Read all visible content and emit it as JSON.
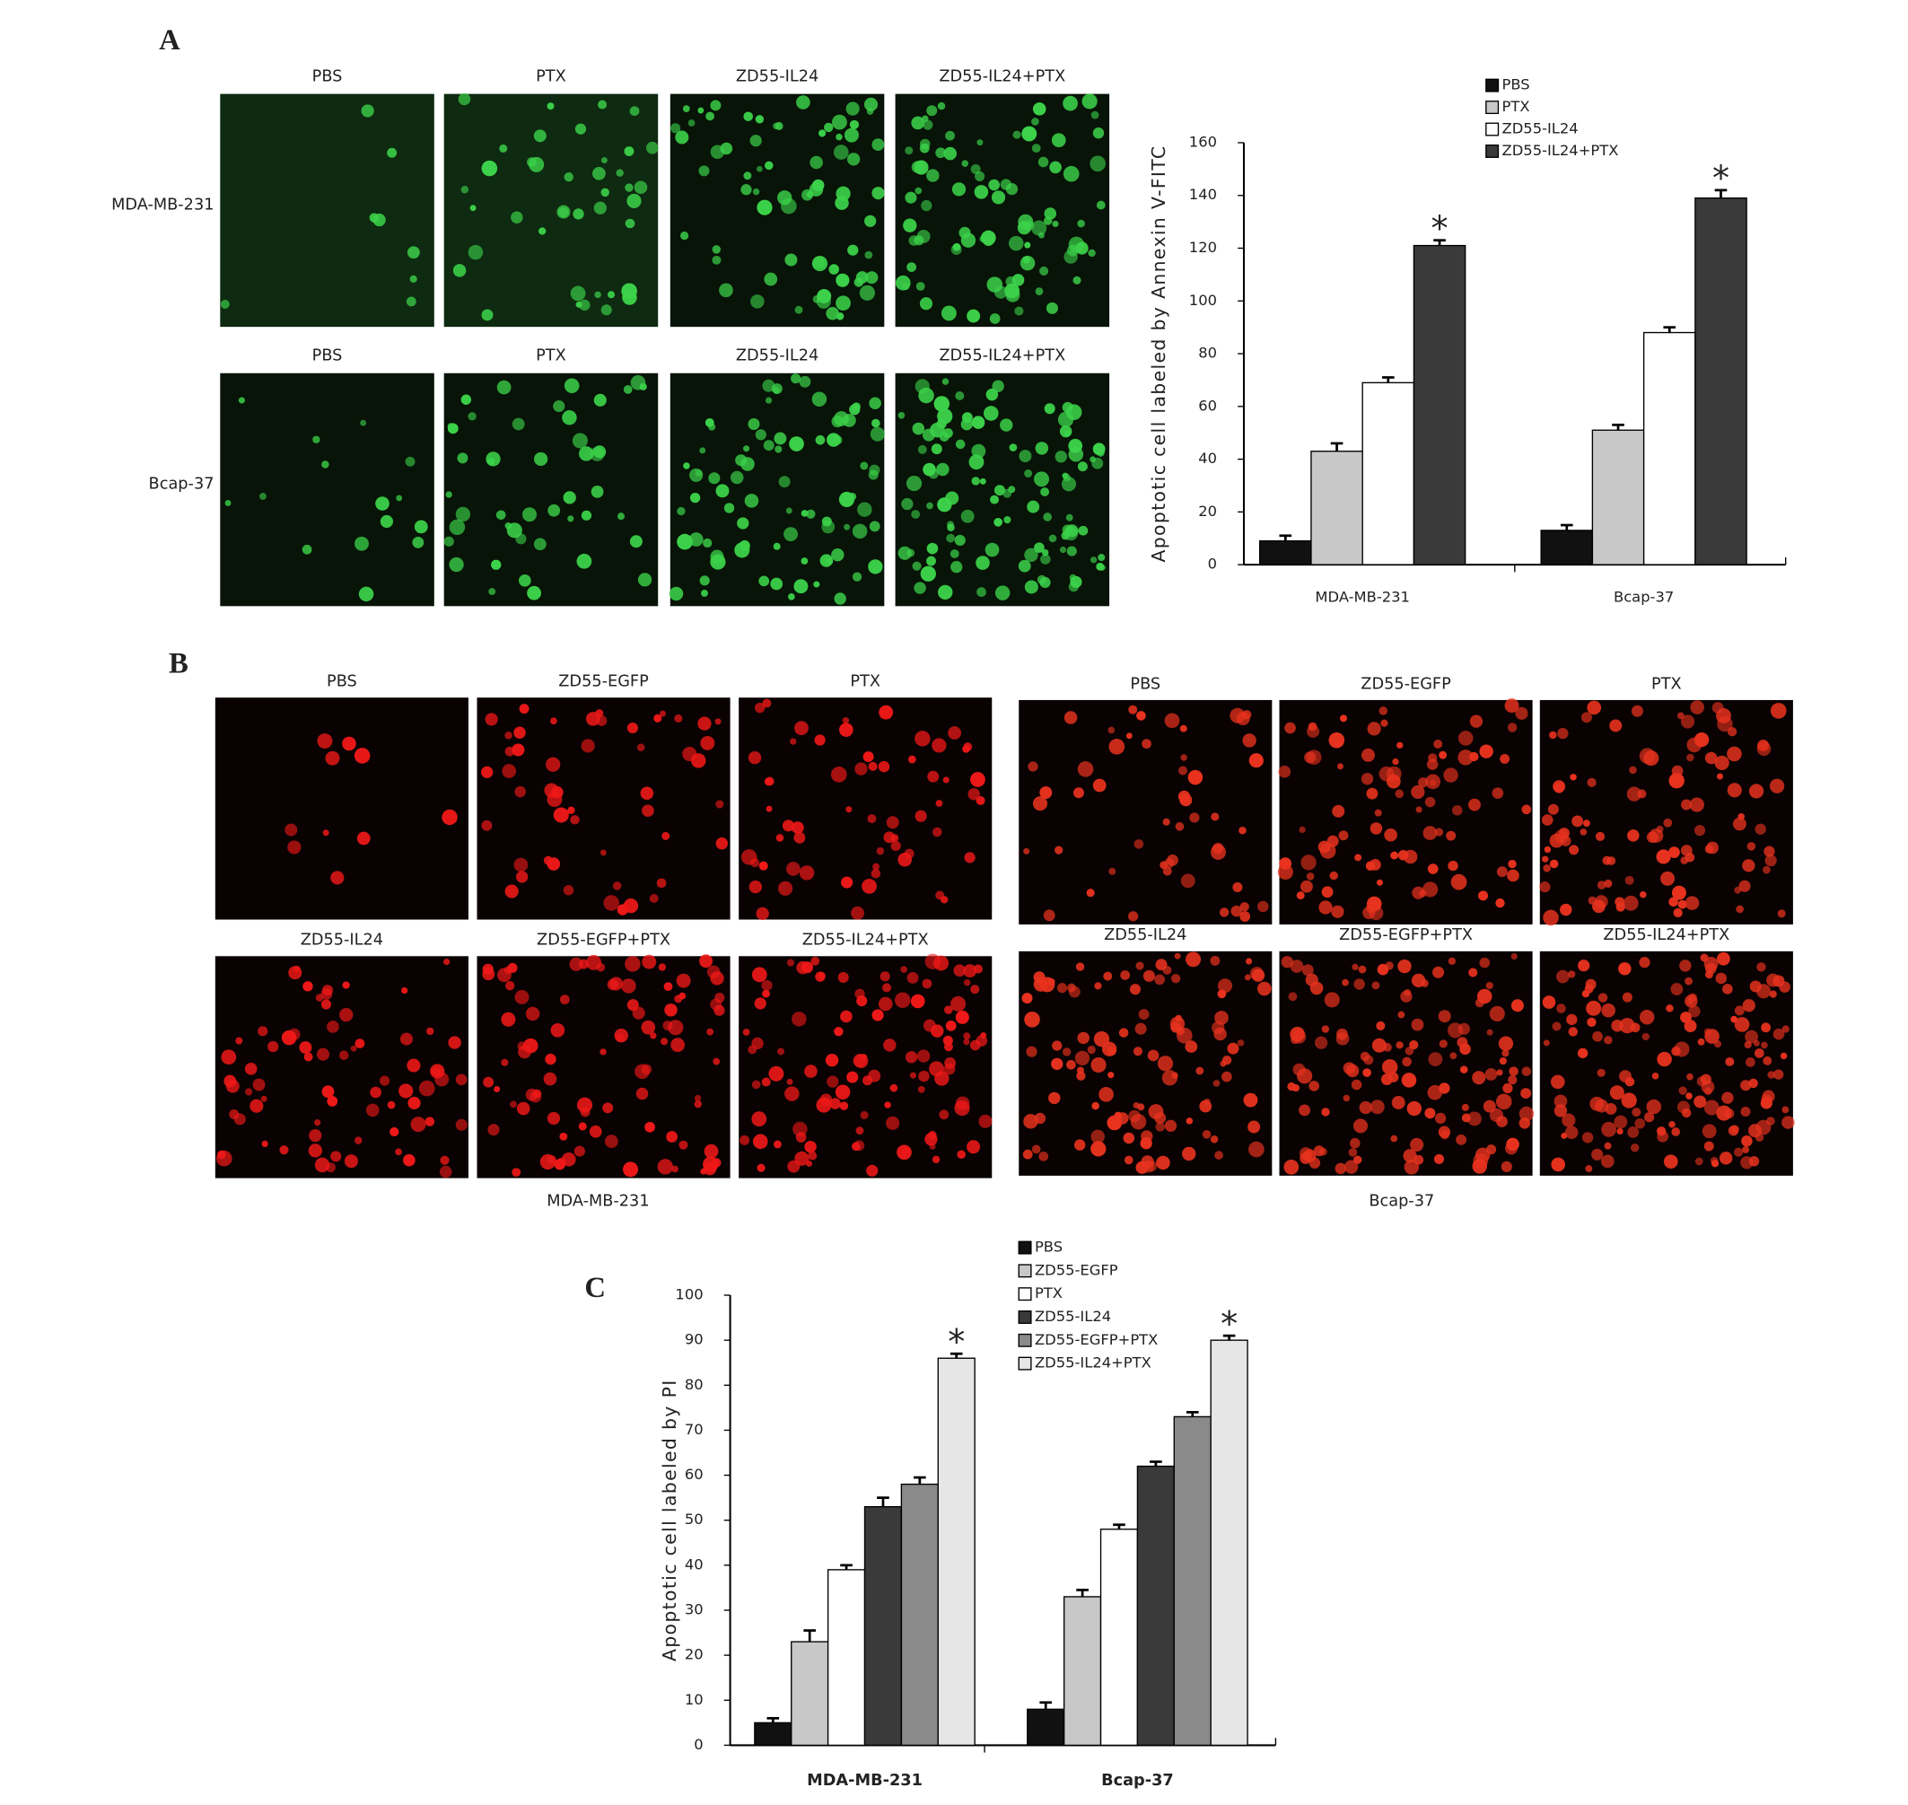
{
  "panels": {
    "A": {
      "letter": "A",
      "columns": [
        "PBS",
        "PTX",
        "ZD55-IL24",
        "ZD55-IL24+PTX"
      ],
      "rows": [
        "MDA-MB-231",
        "Bcap-37"
      ]
    },
    "B": {
      "letter": "B",
      "groups": [
        {
          "caption": "MDA-MB-231",
          "labels": [
            "PBS",
            "ZD55-EGFP",
            "PTX",
            "ZD55-IL24",
            "ZD55-EGFP+PTX",
            "ZD55-IL24+PTX"
          ]
        },
        {
          "caption": "Bcap-37",
          "labels": [
            "PBS",
            "ZD55-EGFP",
            "PTX",
            "ZD55-IL24",
            "ZD55-EGFP+PTX",
            "ZD55-IL24+PTX"
          ]
        }
      ]
    },
    "C": {
      "letter": "C"
    }
  },
  "chart_data": [
    {
      "type": "bar",
      "y_label": "Apoptotic cell labeled by Annexin V-FITC",
      "categories": [
        "MDA-MB-231",
        "Bcap-37"
      ],
      "series": [
        {
          "name": "PBS",
          "color": "#111111",
          "values": [
            9,
            13
          ],
          "errors": [
            2,
            2
          ]
        },
        {
          "name": "PTX",
          "color": "#c8c8c8",
          "values": [
            43,
            51
          ],
          "errors": [
            3,
            2
          ]
        },
        {
          "name": "ZD55-IL24",
          "color": "#ffffff",
          "values": [
            69,
            88
          ],
          "errors": [
            2,
            2
          ]
        },
        {
          "name": "ZD55-IL24+PTX",
          "color": "#3a3a3a",
          "values": [
            121,
            139
          ],
          "errors": [
            2,
            3
          ],
          "annotations": [
            "*",
            "*"
          ]
        }
      ],
      "ylim": [
        0,
        160
      ],
      "yticks": [
        0,
        20,
        40,
        60,
        80,
        100,
        120,
        140,
        160
      ],
      "grid": false,
      "legend": "top"
    },
    {
      "type": "bar",
      "y_label": "Apoptotic cell labeled by PI",
      "categories": [
        "MDA-MB-231",
        "Bcap-37"
      ],
      "series": [
        {
          "name": "PBS",
          "color": "#111111",
          "values": [
            5,
            8
          ],
          "errors": [
            1,
            1.5
          ]
        },
        {
          "name": "ZD55-EGFP",
          "color": "#c8c8c8",
          "values": [
            23,
            33
          ],
          "errors": [
            2.5,
            1.5
          ]
        },
        {
          "name": "PTX",
          "color": "#ffffff",
          "values": [
            39,
            48
          ],
          "errors": [
            1,
            1
          ]
        },
        {
          "name": "ZD55-IL24",
          "color": "#3a3a3a",
          "values": [
            53,
            62
          ],
          "errors": [
            2,
            1
          ]
        },
        {
          "name": "ZD55-EGFP+PTX",
          "color": "#8a8a8a",
          "values": [
            58,
            73
          ],
          "errors": [
            1.5,
            1
          ]
        },
        {
          "name": "ZD55-IL24+PTX",
          "color": "#e6e6e6",
          "values": [
            86,
            90
          ],
          "errors": [
            1,
            1
          ],
          "annotations": [
            "*",
            "*"
          ]
        }
      ],
      "ylim": [
        0,
        100
      ],
      "yticks": [
        0,
        10,
        20,
        30,
        40,
        50,
        60,
        70,
        80,
        90,
        100
      ],
      "grid": false,
      "legend": "top"
    }
  ]
}
